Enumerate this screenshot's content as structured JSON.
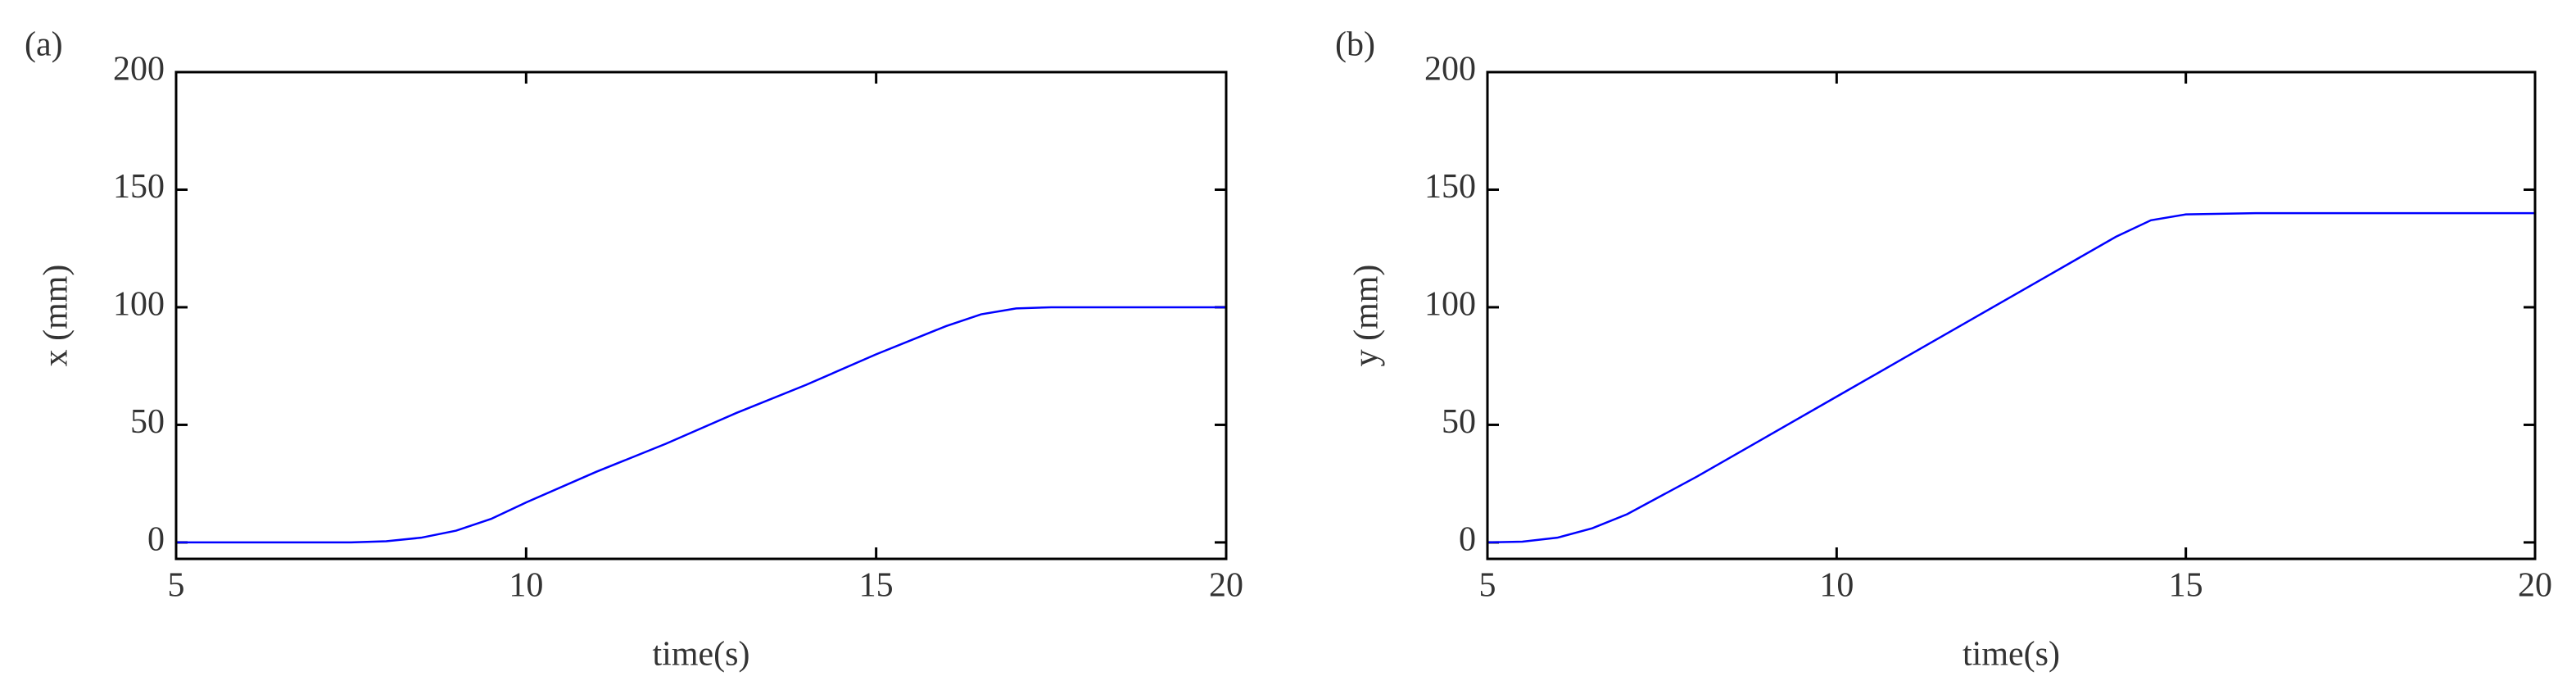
{
  "chart_data": [
    {
      "type": "line",
      "label": "(a)",
      "xlabel": "time(s)",
      "ylabel": "x (mm)",
      "x": [
        5,
        7,
        7.5,
        8,
        8.5,
        9,
        9.5,
        10,
        11,
        12,
        13,
        14,
        15,
        16,
        16.5,
        17,
        17.5,
        18,
        19,
        20
      ],
      "series": [
        {
          "color": "#0000ff",
          "values": [
            0,
            0,
            0,
            0.5,
            2,
            5,
            10,
            17,
            30,
            42,
            55,
            67,
            80,
            92,
            97,
            99.5,
            100,
            100,
            100,
            100
          ]
        }
      ],
      "xlim": [
        5,
        20
      ],
      "ylim": [
        -7,
        200
      ],
      "xticks": [
        5,
        10,
        15,
        20
      ],
      "yticks": [
        0,
        50,
        100,
        150,
        200
      ]
    },
    {
      "type": "line",
      "label": "(b)",
      "xlabel": "time(s)",
      "ylabel": "y (mm)",
      "x": [
        5,
        5.5,
        6,
        6.5,
        7,
        8,
        9,
        10,
        11,
        12,
        13,
        14,
        14.5,
        15,
        16,
        17,
        18,
        19,
        20
      ],
      "series": [
        {
          "color": "#0000ff",
          "values": [
            0,
            0.3,
            2,
            6,
            12,
            28,
            45,
            62,
            79,
            96,
            113,
            130,
            137,
            139.5,
            140,
            140,
            140,
            140,
            140
          ]
        }
      ],
      "xlim": [
        5,
        20
      ],
      "ylim": [
        -7,
        200
      ],
      "xticks": [
        5,
        10,
        15,
        20
      ],
      "yticks": [
        0,
        50,
        100,
        150,
        200
      ]
    }
  ]
}
